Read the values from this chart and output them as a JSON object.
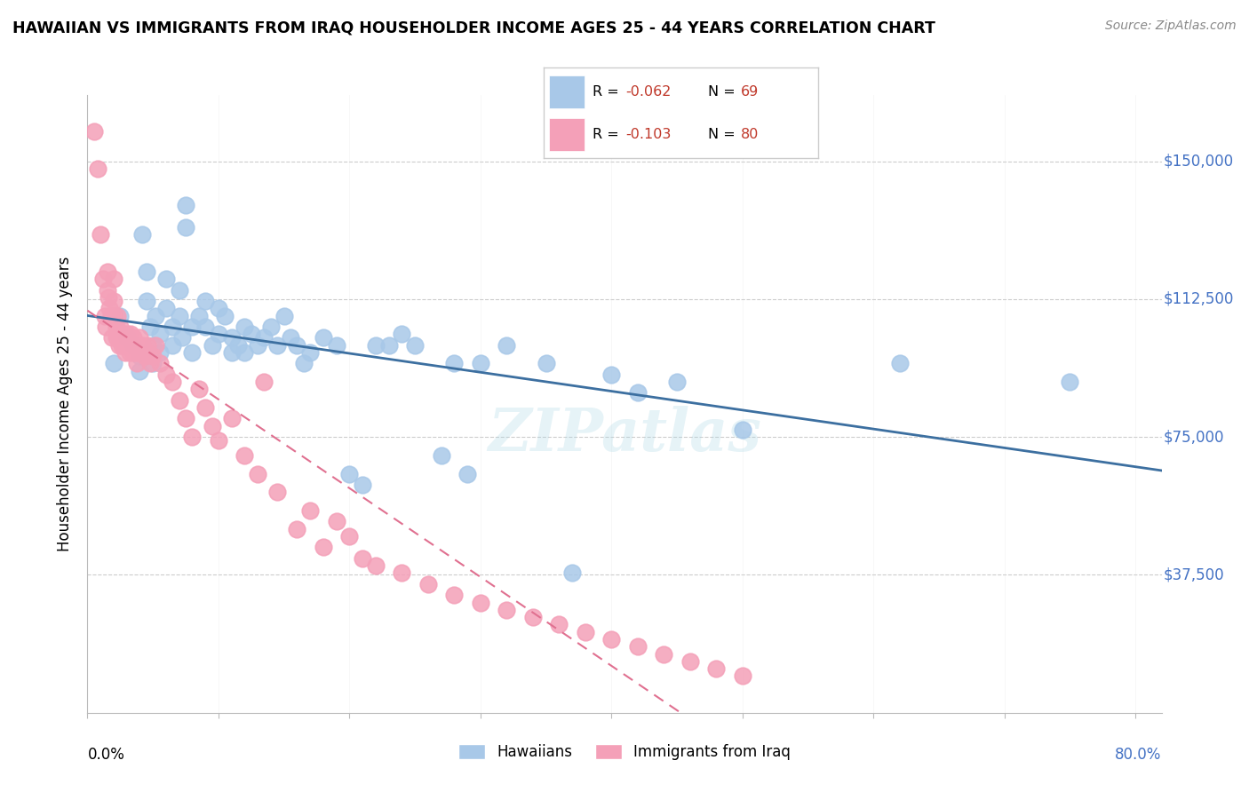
{
  "title": "HAWAIIAN VS IMMIGRANTS FROM IRAQ HOUSEHOLDER INCOME AGES 25 - 44 YEARS CORRELATION CHART",
  "source": "Source: ZipAtlas.com",
  "ylabel": "Householder Income Ages 25 - 44 years",
  "ytick_labels": [
    "$150,000",
    "$112,500",
    "$75,000",
    "$37,500"
  ],
  "ytick_values": [
    150000,
    112500,
    75000,
    37500
  ],
  "ylim": [
    0,
    168000
  ],
  "xlim": [
    0.0,
    0.82
  ],
  "hawaiians_color": "#a8c8e8",
  "iraq_color": "#f4a0b8",
  "hawaiians_line_color": "#3c6fa0",
  "iraq_line_color": "#e07090",
  "legend_label_hawaiians": "Hawaiians",
  "legend_label_iraq": "Immigrants from Iraq",
  "watermark": "ZIPatlas",
  "hawaiians_x": [
    0.02,
    0.025,
    0.03,
    0.035,
    0.04,
    0.04,
    0.042,
    0.045,
    0.045,
    0.048,
    0.05,
    0.05,
    0.052,
    0.055,
    0.055,
    0.06,
    0.06,
    0.065,
    0.065,
    0.07,
    0.07,
    0.072,
    0.075,
    0.075,
    0.08,
    0.08,
    0.085,
    0.09,
    0.09,
    0.095,
    0.1,
    0.1,
    0.105,
    0.11,
    0.11,
    0.115,
    0.12,
    0.12,
    0.125,
    0.13,
    0.135,
    0.14,
    0.145,
    0.15,
    0.155,
    0.16,
    0.165,
    0.17,
    0.18,
    0.19,
    0.2,
    0.21,
    0.22,
    0.23,
    0.24,
    0.25,
    0.27,
    0.28,
    0.29,
    0.3,
    0.32,
    0.35,
    0.37,
    0.4,
    0.42,
    0.45,
    0.5,
    0.62,
    0.75
  ],
  "hawaiians_y": [
    95000,
    108000,
    102000,
    100000,
    97000,
    93000,
    130000,
    120000,
    112000,
    105000,
    100000,
    95000,
    108000,
    103000,
    98000,
    118000,
    110000,
    105000,
    100000,
    115000,
    108000,
    102000,
    138000,
    132000,
    105000,
    98000,
    108000,
    112000,
    105000,
    100000,
    110000,
    103000,
    108000,
    98000,
    102000,
    100000,
    105000,
    98000,
    103000,
    100000,
    102000,
    105000,
    100000,
    108000,
    102000,
    100000,
    95000,
    98000,
    102000,
    100000,
    65000,
    62000,
    100000,
    100000,
    103000,
    100000,
    70000,
    95000,
    65000,
    95000,
    100000,
    95000,
    38000,
    92000,
    87000,
    90000,
    77000,
    95000,
    90000
  ],
  "iraq_x": [
    0.005,
    0.008,
    0.01,
    0.012,
    0.013,
    0.014,
    0.015,
    0.015,
    0.016,
    0.017,
    0.018,
    0.019,
    0.02,
    0.02,
    0.021,
    0.022,
    0.022,
    0.023,
    0.023,
    0.024,
    0.025,
    0.025,
    0.026,
    0.027,
    0.028,
    0.029,
    0.03,
    0.03,
    0.032,
    0.033,
    0.034,
    0.035,
    0.035,
    0.036,
    0.037,
    0.038,
    0.04,
    0.042,
    0.044,
    0.045,
    0.046,
    0.048,
    0.05,
    0.052,
    0.055,
    0.06,
    0.065,
    0.07,
    0.075,
    0.08,
    0.085,
    0.09,
    0.095,
    0.1,
    0.11,
    0.12,
    0.13,
    0.135,
    0.145,
    0.16,
    0.17,
    0.18,
    0.19,
    0.2,
    0.21,
    0.22,
    0.24,
    0.26,
    0.28,
    0.3,
    0.32,
    0.34,
    0.36,
    0.38,
    0.4,
    0.42,
    0.44,
    0.46,
    0.48,
    0.5
  ],
  "iraq_y": [
    158000,
    148000,
    130000,
    118000,
    108000,
    105000,
    120000,
    115000,
    113000,
    110000,
    108000,
    102000,
    118000,
    112000,
    108000,
    105000,
    102000,
    108000,
    103000,
    100000,
    105000,
    102000,
    100000,
    103000,
    100000,
    98000,
    103000,
    100000,
    98000,
    103000,
    100000,
    98000,
    102000,
    100000,
    98000,
    95000,
    102000,
    100000,
    97000,
    98000,
    100000,
    95000,
    97000,
    100000,
    95000,
    92000,
    90000,
    85000,
    80000,
    75000,
    88000,
    83000,
    78000,
    74000,
    80000,
    70000,
    65000,
    90000,
    60000,
    50000,
    55000,
    45000,
    52000,
    48000,
    42000,
    40000,
    38000,
    35000,
    32000,
    30000,
    28000,
    26000,
    24000,
    22000,
    20000,
    18000,
    16000,
    14000,
    12000,
    10000
  ]
}
